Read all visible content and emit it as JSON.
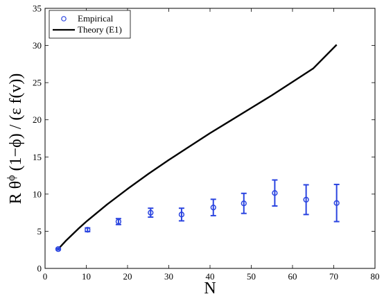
{
  "chart_data": {
    "type": "scatter",
    "title": "",
    "xlabel": "N",
    "ylabel_parts": {
      "r_theta": "R θ",
      "phi_sup": "ϕ",
      "rest": " (1−ϕ) / (ε f(v))"
    },
    "xlim": [
      0,
      80
    ],
    "ylim": [
      0,
      35
    ],
    "xticks": [
      0,
      10,
      20,
      30,
      40,
      50,
      60,
      70,
      80
    ],
    "yticks": [
      0,
      5,
      10,
      15,
      20,
      25,
      30,
      35
    ],
    "legend": {
      "placement": "top-left",
      "entries": [
        {
          "label": "Empirical",
          "marker": "circle"
        },
        {
          "label": "Theory (E1)",
          "marker": "line"
        }
      ]
    },
    "series": [
      {
        "name": "Empirical",
        "kind": "points-with-errorbars",
        "color": "#2a44e0",
        "points": [
          {
            "x": 3.2,
            "y": 2.6,
            "err": 0.1
          },
          {
            "x": 10.3,
            "y": 5.2,
            "err": 0.25
          },
          {
            "x": 17.8,
            "y": 6.3,
            "err": 0.4
          },
          {
            "x": 25.6,
            "y": 7.5,
            "err": 0.6
          },
          {
            "x": 33.1,
            "y": 7.25,
            "err": 0.85
          },
          {
            "x": 40.8,
            "y": 8.2,
            "err": 1.1
          },
          {
            "x": 48.2,
            "y": 8.75,
            "err": 1.35
          },
          {
            "x": 55.7,
            "y": 10.15,
            "err": 1.75
          },
          {
            "x": 63.3,
            "y": 9.25,
            "err": 2.0
          },
          {
            "x": 70.7,
            "y": 8.8,
            "err": 2.5
          }
        ]
      },
      {
        "name": "Theory (E1)",
        "kind": "line",
        "color": "#000000",
        "x": [
          3.2,
          5,
          8,
          10,
          15,
          20,
          25,
          30,
          35,
          40,
          45,
          50,
          55,
          60,
          65,
          70.7
        ],
        "y": [
          2.6,
          3.7,
          5.3,
          6.3,
          8.6,
          10.7,
          12.7,
          14.6,
          16.4,
          18.2,
          19.9,
          21.6,
          23.3,
          25.1,
          26.9,
          30.1
        ]
      }
    ]
  }
}
